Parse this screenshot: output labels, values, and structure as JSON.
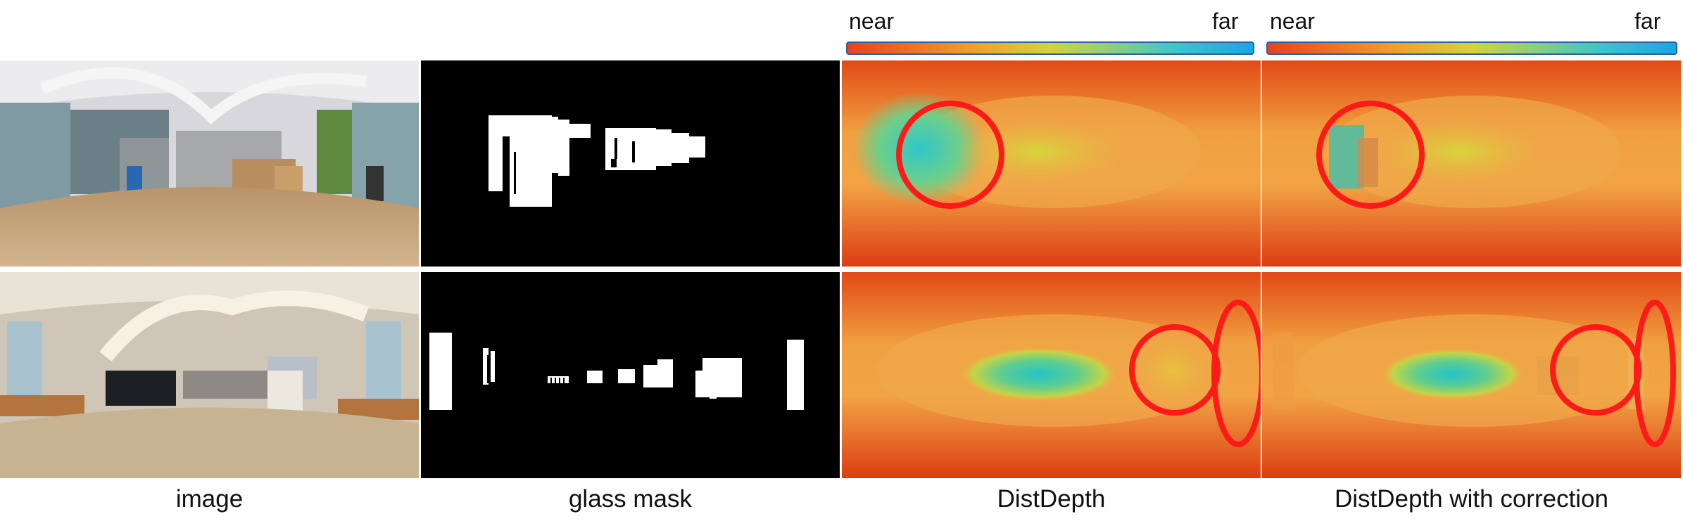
{
  "colorbars": [
    {
      "near": "near",
      "far": "far"
    },
    {
      "near": "near",
      "far": "far"
    }
  ],
  "captions": {
    "image": "image",
    "glass_mask": "glass mask",
    "distdepth": "DistDepth",
    "distdepth_corrected": "DistDepth with correction"
  },
  "colors": {
    "highlight": "#ff1a1a",
    "colorbar_start": "#e8431c",
    "colorbar_end": "#17a6e6",
    "mask_background": "#000000",
    "mask_foreground": "#ffffff"
  }
}
